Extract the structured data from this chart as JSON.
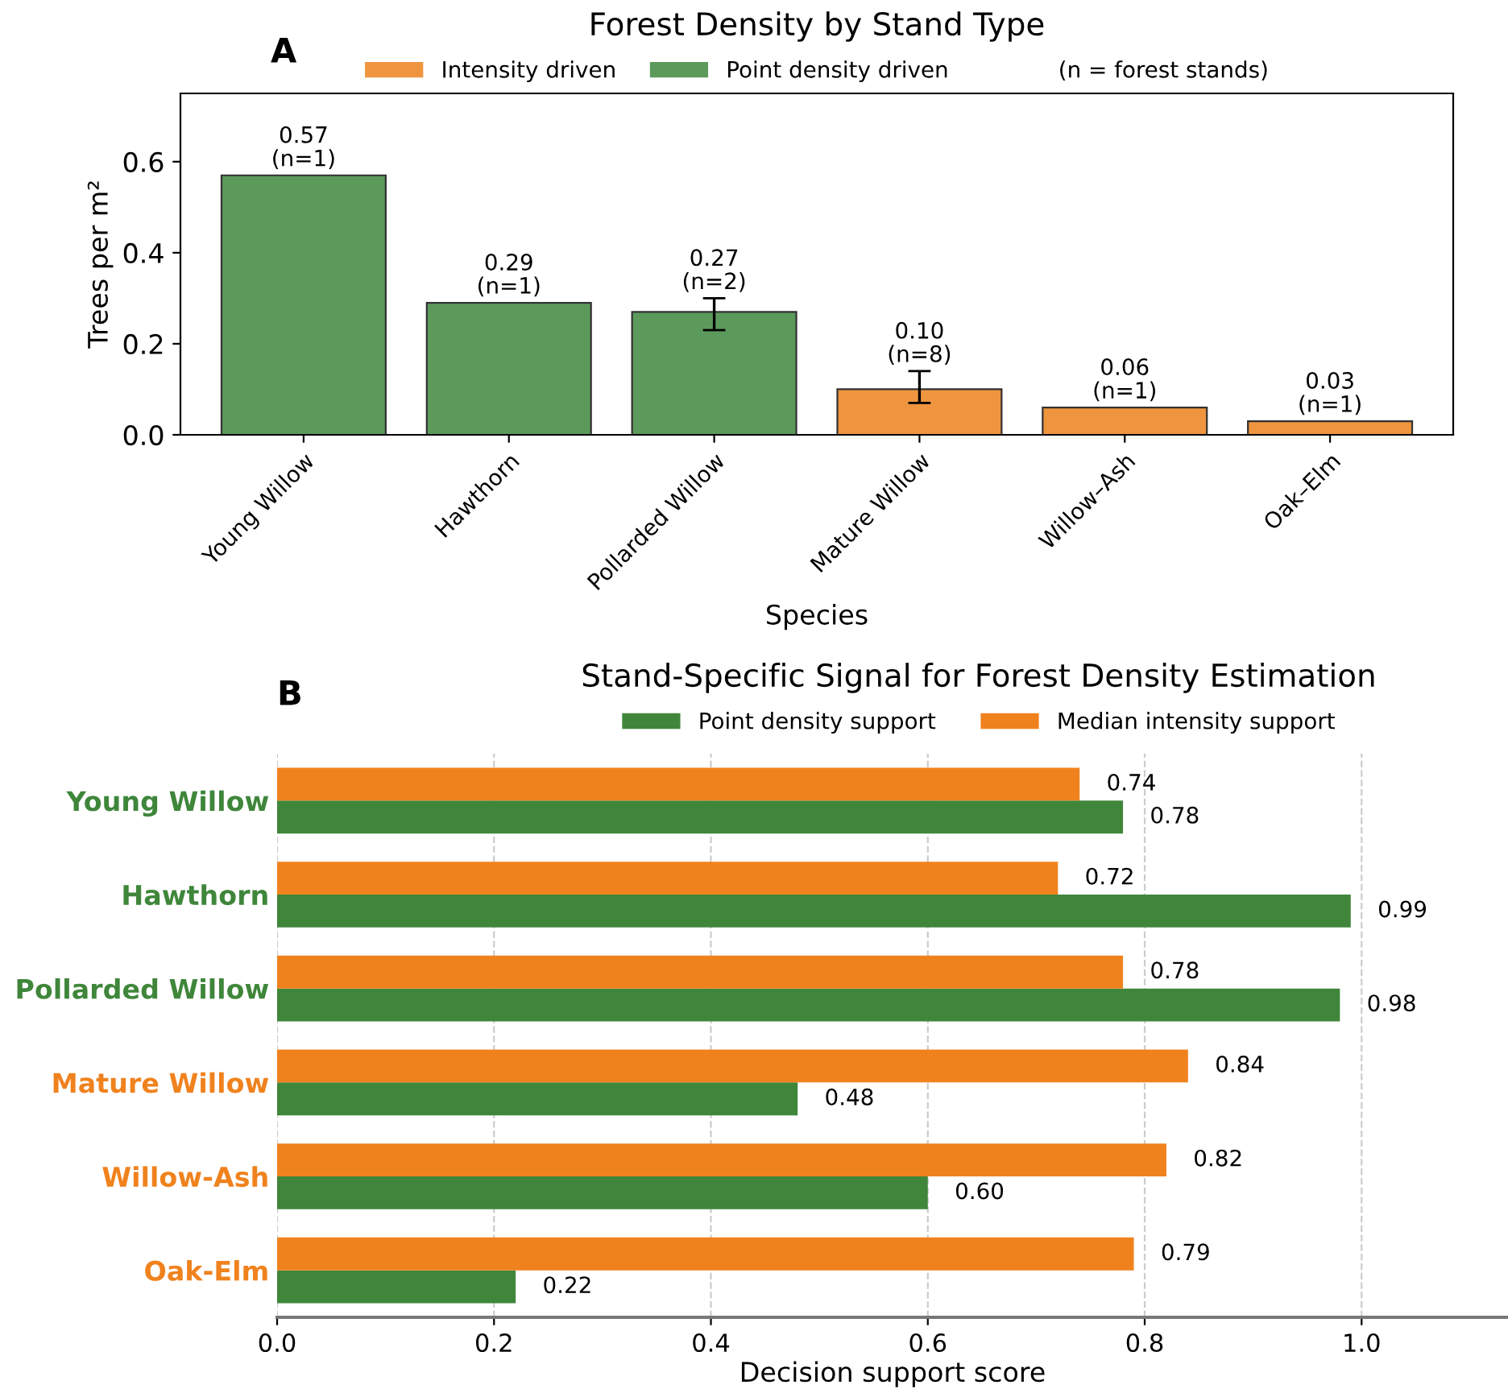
{
  "chart_data": [
    {
      "type": "bar",
      "title": "Forest Density by Stand Type",
      "xlabel": "Species",
      "ylabel": "Trees per m²",
      "categories": [
        "Young Willow",
        "Hawthorn",
        "Pollarded Willow",
        "Mature Willow",
        "Willow–Ash",
        "Oak–Elm"
      ],
      "series": [
        {
          "name": "Intensity driven",
          "color": "#f0953f",
          "values": [
            null,
            null,
            null,
            0.1,
            0.06,
            0.03
          ],
          "errors": [
            null,
            null,
            null,
            [
              0.07,
              0.14
            ],
            null,
            null
          ],
          "value_labels": [
            null,
            null,
            null,
            "0.10\n(n=8)",
            "0.06\n(n=1)",
            "0.03\n(n=1)"
          ]
        },
        {
          "name": "Point density driven",
          "color": "#5c9a5c",
          "values": [
            0.57,
            0.29,
            0.27,
            null,
            null,
            null
          ],
          "errors": [
            null,
            null,
            [
              0.23,
              0.3
            ],
            null,
            null,
            null
          ],
          "value_labels": [
            "0.57\n(n=1)",
            "0.29\n(n=1)",
            "0.27\n(n=2)",
            null,
            null,
            null
          ]
        }
      ],
      "legend_title": "(n = forest stands)",
      "ylim": [
        0,
        0.75
      ],
      "yticks": [
        {
          "value": 0,
          "label": "0.0"
        },
        {
          "value": 0.2,
          "label": "0.2"
        },
        {
          "value": 0.4,
          "label": "0.4"
        },
        {
          "value": 0.6,
          "label": "0.6"
        }
      ],
      "legend": "top",
      "grid": false,
      "annotations": [
        "A"
      ]
    },
    {
      "type": "bar",
      "orientation": "horizontal",
      "title": "Stand-Specific Signal for Forest Density Estimation",
      "xlabel": "Decision support score",
      "categories": [
        "Young Willow",
        "Hawthorn",
        "Pollarded Willow",
        "Mature Willow",
        "Willow-Ash",
        "Oak-Elm"
      ],
      "series": [
        {
          "name": "Point density support",
          "color": "#3f863b",
          "values": [
            0.78,
            0.99,
            0.98,
            0.48,
            0.6,
            0.22
          ],
          "value_labels": [
            "0.78",
            "0.99",
            "0.98",
            "0.48",
            "0.60",
            "0.22"
          ]
        },
        {
          "name": "Median intensity support",
          "color": "#f0821e",
          "values": [
            0.74,
            0.72,
            0.78,
            0.84,
            0.82,
            0.79
          ],
          "value_labels": [
            "0.74",
            "0.72",
            "0.78",
            "0.84",
            "0.82",
            "0.79"
          ]
        }
      ],
      "xlim": [
        0,
        1.135
      ],
      "xticks": [
        {
          "value": 0,
          "label": "0.0"
        },
        {
          "value": 0.2,
          "label": "0.2"
        },
        {
          "value": 0.4,
          "label": "0.4"
        },
        {
          "value": 0.6,
          "label": "0.6"
        },
        {
          "value": 0.8,
          "label": "0.8"
        },
        {
          "value": 1,
          "label": "1.0"
        }
      ],
      "grid": "x",
      "legend": "top",
      "annotations": [
        "B"
      ]
    }
  ]
}
